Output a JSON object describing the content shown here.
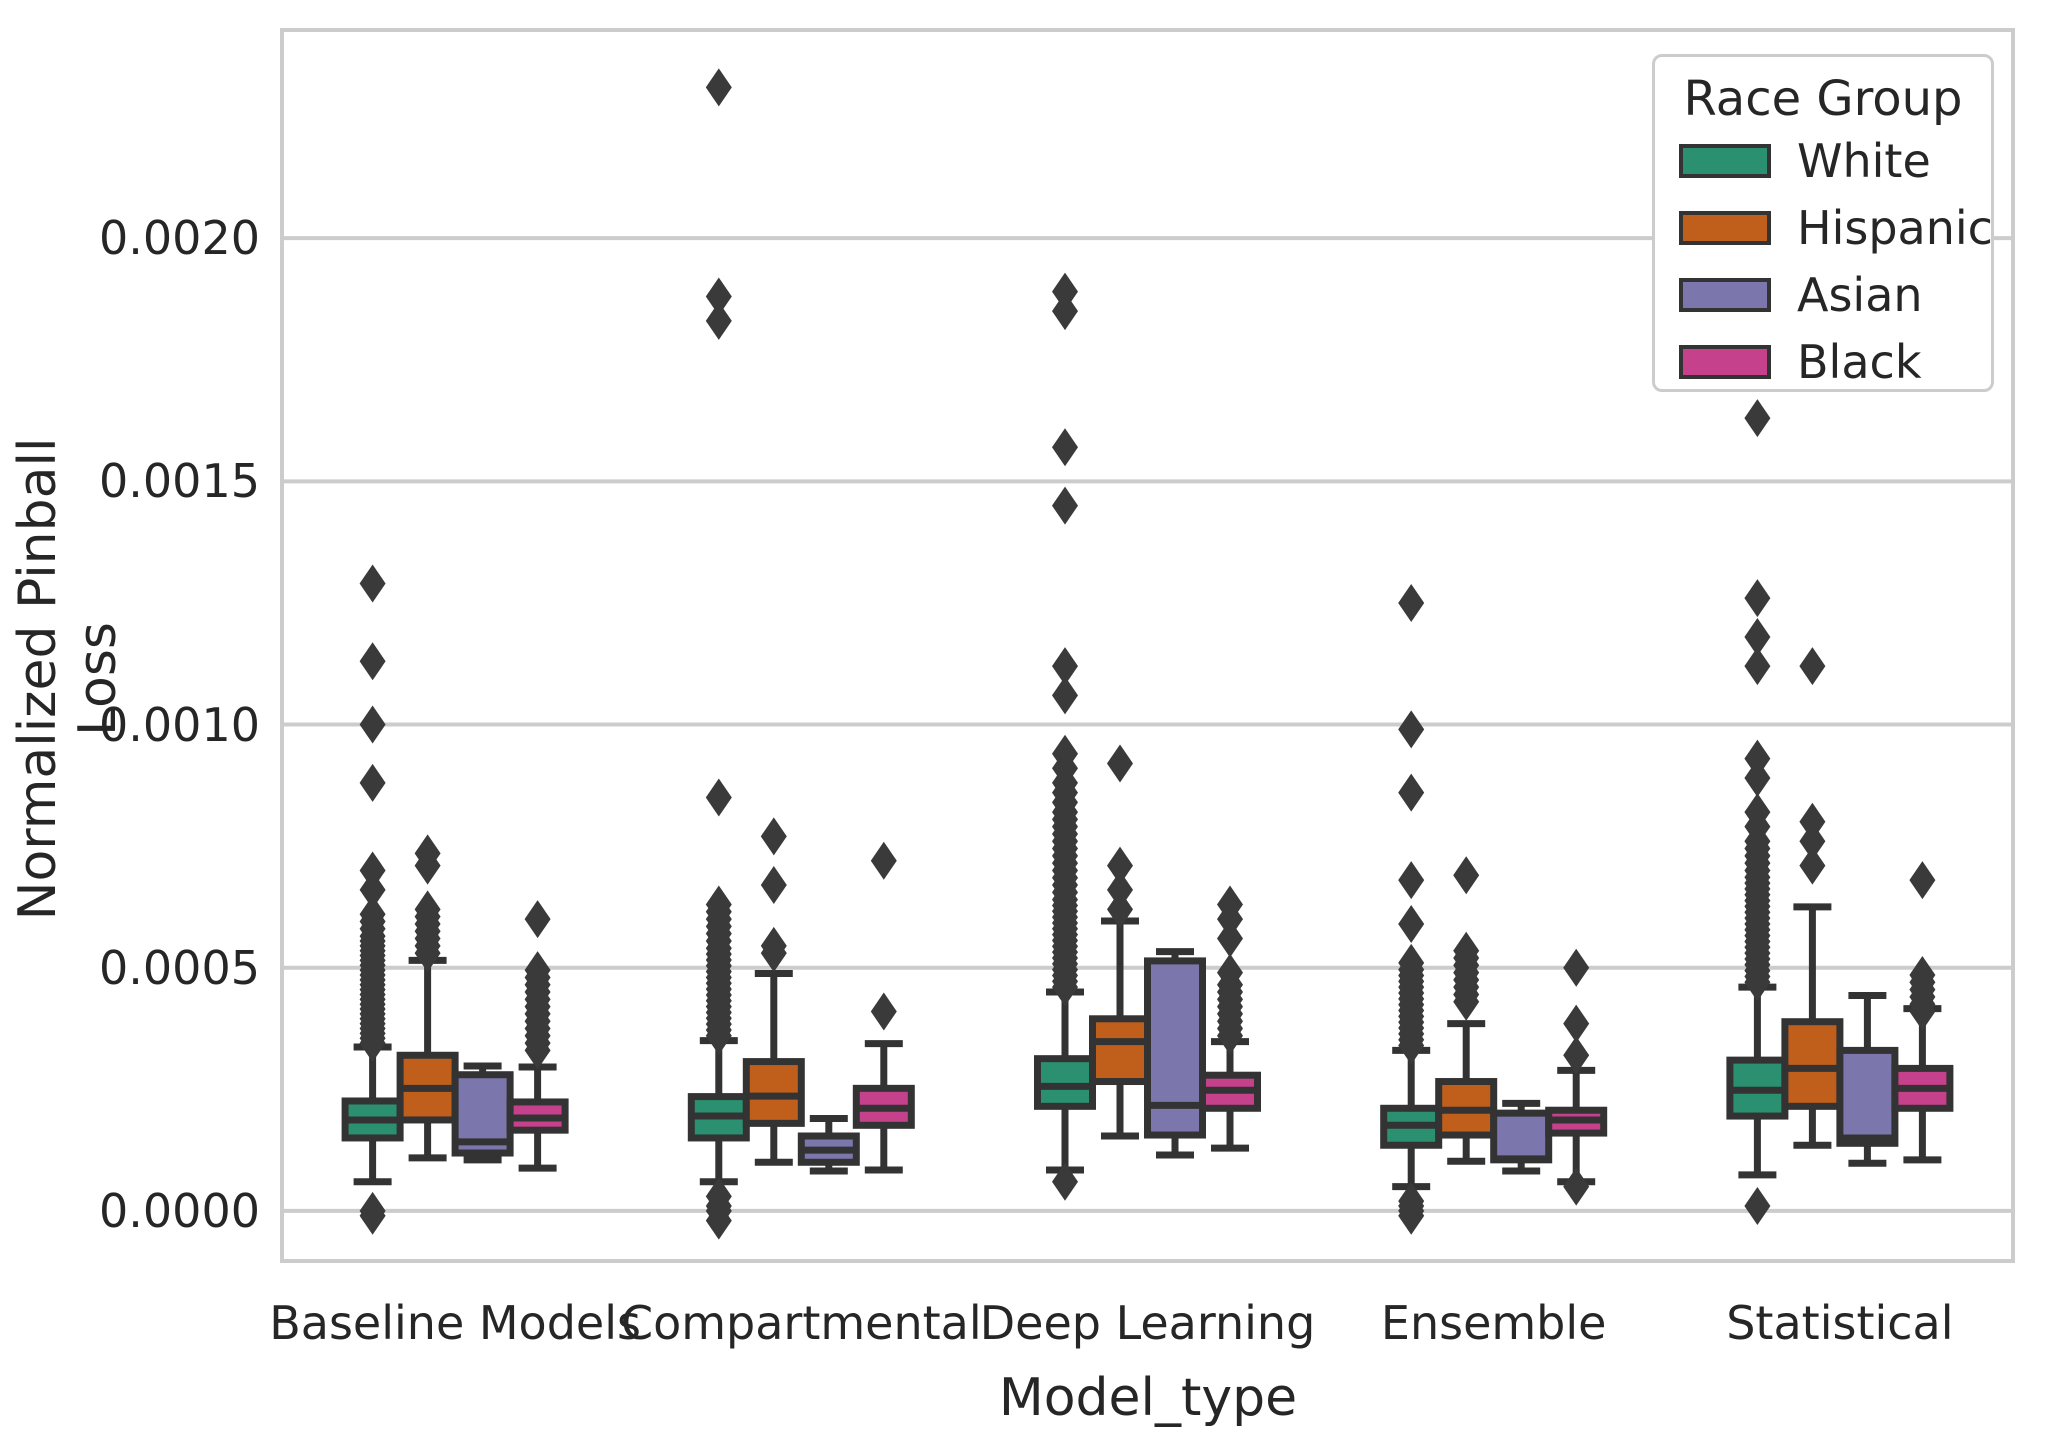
{
  "chart_data": {
    "type": "boxplot-grouped",
    "title": "",
    "xlabel": "Model_type",
    "ylabel": "Normalized Pinball Loss",
    "ylim": [
      -0.000103,
      0.002428
    ],
    "yticks": [
      0.0,
      0.0005,
      0.001,
      0.0015,
      0.002
    ],
    "ytick_labels": [
      "0.0000",
      "0.0005",
      "0.0010",
      "0.0015",
      "0.0020"
    ],
    "grid": "horizontal",
    "categories": [
      "Baseline Models",
      "Compartmental",
      "Deep Learning",
      "Ensemble",
      "Statistical"
    ],
    "legend": {
      "title": "Race Group",
      "position": "upper right",
      "entries": [
        {
          "label": "White",
          "color": "#2b9070"
        },
        {
          "label": "Hispanic",
          "color": "#c05f1c"
        },
        {
          "label": "Asian",
          "color": "#7b77ad"
        },
        {
          "label": "Black",
          "color": "#c5418c"
        }
      ]
    },
    "style": {
      "edge_color": "#333333",
      "flier_color": "#3a3a3a",
      "grid_color": "#cccccc",
      "frame_color": "#cccccc",
      "background": "#ffffff"
    },
    "series": [
      {
        "name": "White",
        "boxes": [
          {
            "whislo": 6e-05,
            "q1": 0.00015,
            "med": 0.000187,
            "q3": 0.000226,
            "whishi": 0.000337,
            "fliers_high": [
              0.000345,
              0.000355,
              0.000365,
              0.000375,
              0.000385,
              0.000395,
              0.000405,
              0.000415,
              0.000425,
              0.000435,
              0.000445,
              0.000455,
              0.000465,
              0.000475,
              0.000485,
              0.000495,
              0.000505,
              0.000515,
              0.000525,
              0.000535,
              0.000545,
              0.000555,
              0.000565,
              0.00058,
              0.000595,
              0.00061,
              0.00066,
              0.0007,
              0.00088,
              0.001,
              0.00113,
              0.00129
            ],
            "fliers_low": [
              0.0,
              -1e-05
            ]
          },
          {
            "whislo": 6e-05,
            "q1": 0.00015,
            "med": 0.000195,
            "q3": 0.000235,
            "whishi": 0.00035,
            "fliers_high": [
              0.00036,
              0.000372,
              0.000384,
              0.000396,
              0.000408,
              0.00042,
              0.000432,
              0.000444,
              0.000456,
              0.000468,
              0.00048,
              0.000492,
              0.000504,
              0.000516,
              0.000528,
              0.00054,
              0.000555,
              0.00057,
              0.000585,
              0.0006,
              0.000615,
              0.00063,
              0.00085,
              0.00183,
              0.00188,
              0.00231
            ],
            "fliers_low": [
              3e-05,
              1e-05,
              0.0,
              -2e-05
            ]
          },
          {
            "whislo": 8.4e-05,
            "q1": 0.000215,
            "med": 0.000256,
            "q3": 0.000313,
            "whishi": 0.00045,
            "fliers_high": [
              0.00046,
              0.000472,
              0.000484,
              0.000496,
              0.000508,
              0.00052,
              0.000532,
              0.000544,
              0.000556,
              0.000568,
              0.00058,
              0.000592,
              0.000604,
              0.000616,
              0.000628,
              0.00064,
              0.000655,
              0.00067,
              0.000685,
              0.0007,
              0.000715,
              0.00073,
              0.000745,
              0.00076,
              0.000775,
              0.00079,
              0.000805,
              0.00082,
              0.00084,
              0.00086,
              0.00088,
              0.00091,
              0.00094,
              0.00106,
              0.00112,
              0.00145,
              0.00157,
              0.00185,
              0.00189
            ],
            "fliers_low": [
              6e-05
            ]
          },
          {
            "whislo": 5e-05,
            "q1": 0.000135,
            "med": 0.000176,
            "q3": 0.000211,
            "whishi": 0.00033,
            "fliers_high": [
              0.00034,
              0.000352,
              0.000364,
              0.000376,
              0.000388,
              0.0004,
              0.000412,
              0.000424,
              0.000436,
              0.000448,
              0.00046,
              0.000472,
              0.000484,
              0.000496,
              0.00051,
              0.00059,
              0.00068,
              0.00086,
              0.00099,
              0.00125
            ],
            "fliers_low": [
              2e-05,
              1e-05,
              0.0,
              -1e-05
            ]
          },
          {
            "whislo": 7.4e-05,
            "q1": 0.000195,
            "med": 0.000248,
            "q3": 0.00031,
            "whishi": 0.00046,
            "fliers_high": [
              0.00047,
              0.000482,
              0.000494,
              0.000506,
              0.000518,
              0.00053,
              0.000542,
              0.000554,
              0.000566,
              0.000578,
              0.00059,
              0.000602,
              0.000614,
              0.000626,
              0.000638,
              0.00065,
              0.000662,
              0.000674,
              0.000686,
              0.0007,
              0.000715,
              0.00073,
              0.000745,
              0.00076,
              0.00079,
              0.00082,
              0.00089,
              0.00093,
              0.00112,
              0.00118,
              0.00126,
              0.00163
            ],
            "fliers_low": [
              1e-05
            ]
          }
        ]
      },
      {
        "name": "Hispanic",
        "boxes": [
          {
            "whislo": 0.000109,
            "q1": 0.000187,
            "med": 0.000252,
            "q3": 0.00032,
            "whishi": 0.000515,
            "fliers_high": [
              0.00053,
              0.000545,
              0.00056,
              0.000575,
              0.00059,
              0.000605,
              0.00062,
              0.00071,
              0.000735
            ],
            "fliers_low": []
          },
          {
            "whislo": 0.0001,
            "q1": 0.00018,
            "med": 0.000236,
            "q3": 0.000307,
            "whishi": 0.000488,
            "fliers_high": [
              0.00053,
              0.000545,
              0.00067,
              0.00077
            ],
            "fliers_low": []
          },
          {
            "whislo": 0.000154,
            "q1": 0.000266,
            "med": 0.000348,
            "q3": 0.000395,
            "whishi": 0.000596,
            "fliers_high": [
              0.00062,
              0.00066,
              0.00071,
              0.00092
            ],
            "fliers_low": []
          },
          {
            "whislo": 0.000102,
            "q1": 0.000156,
            "med": 0.000207,
            "q3": 0.000266,
            "whishi": 0.000385,
            "fliers_high": [
              0.00043,
              0.000445,
              0.00046,
              0.000475,
              0.00049,
              0.000505,
              0.00052,
              0.000535,
              0.00069
            ],
            "fliers_low": []
          },
          {
            "whislo": 0.000135,
            "q1": 0.000215,
            "med": 0.000293,
            "q3": 0.000389,
            "whishi": 0.000625,
            "fliers_high": [
              0.00071,
              0.00076,
              0.0008,
              0.00112
            ],
            "fliers_low": []
          }
        ]
      },
      {
        "name": "Asian",
        "boxes": [
          {
            "whislo": 0.000105,
            "q1": 0.000119,
            "med": 0.000142,
            "q3": 0.00028,
            "whishi": 0.000298,
            "fliers_high": [],
            "fliers_low": []
          },
          {
            "whislo": 8.2e-05,
            "q1": 0.0001,
            "med": 0.000125,
            "q3": 0.000154,
            "whishi": 0.00019,
            "fliers_high": [],
            "fliers_low": []
          },
          {
            "whislo": 0.000115,
            "q1": 0.000156,
            "med": 0.000217,
            "q3": 0.000514,
            "whishi": 0.000533,
            "fliers_high": [],
            "fliers_low": []
          },
          {
            "whislo": 8.2e-05,
            "q1": 0.000105,
            "med": 0.000107,
            "q3": 0.000201,
            "whishi": 0.000221,
            "fliers_high": [],
            "fliers_low": []
          },
          {
            "whislo": 9.8e-05,
            "q1": 0.000139,
            "med": 0.00015,
            "q3": 0.00033,
            "whishi": 0.000443,
            "fliers_high": [],
            "fliers_low": []
          }
        ]
      },
      {
        "name": "Black",
        "boxes": [
          {
            "whislo": 8.8e-05,
            "q1": 0.000166,
            "med": 0.000191,
            "q3": 0.000224,
            "whishi": 0.000296,
            "fliers_high": [
              0.00033,
              0.000345,
              0.00036,
              0.000375,
              0.00039,
              0.000405,
              0.00042,
              0.000435,
              0.00045,
              0.000465,
              0.00048,
              0.000495,
              0.0006
            ],
            "fliers_low": []
          },
          {
            "whislo": 8.4e-05,
            "q1": 0.000176,
            "med": 0.000211,
            "q3": 0.000252,
            "whishi": 0.000344,
            "fliers_high": [
              0.00041,
              0.00072
            ],
            "fliers_low": []
          },
          {
            "whislo": 0.000129,
            "q1": 0.000211,
            "med": 0.000248,
            "q3": 0.000279,
            "whishi": 0.000348,
            "fliers_high": [
              0.00036,
              0.000375,
              0.00039,
              0.000405,
              0.00042,
              0.000435,
              0.00045,
              0.000465,
              0.00049,
              0.00056,
              0.0006,
              0.00063
            ],
            "fliers_low": []
          },
          {
            "whislo": 6e-05,
            "q1": 0.00016,
            "med": 0.000187,
            "q3": 0.000207,
            "whishi": 0.000289,
            "fliers_high": [
              0.00032,
              0.000385,
              0.0005
            ],
            "fliers_low": [
              5e-05
            ]
          },
          {
            "whislo": 0.000105,
            "q1": 0.000211,
            "med": 0.000252,
            "q3": 0.000293,
            "whishi": 0.000416,
            "fliers_high": [
              0.00041,
              0.000425,
              0.00044,
              0.000455,
              0.00047,
              0.000485,
              0.00068
            ],
            "fliers_low": []
          }
        ]
      }
    ]
  }
}
